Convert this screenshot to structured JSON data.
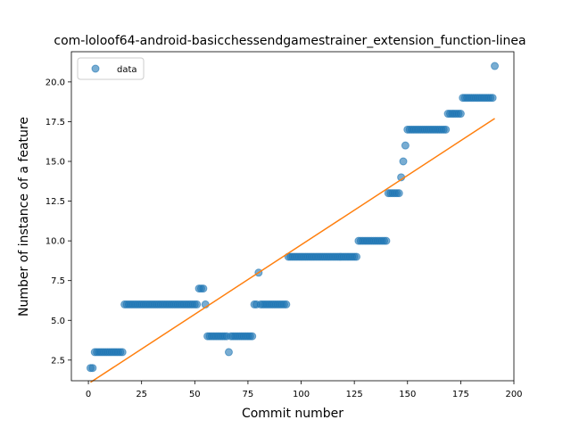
{
  "chart_data": {
    "type": "scatter",
    "title": "com-loloof64-android-basicchessendgamestrainer_extension_function-linea",
    "xlabel": "Commit number",
    "ylabel": "Number of instance of a feature",
    "xlim": [
      -8,
      200
    ],
    "ylim": [
      1.2,
      21.9
    ],
    "xticks": [
      "0",
      "25",
      "50",
      "75",
      "100",
      "125",
      "150",
      "175",
      "200"
    ],
    "yticks": [
      "2.5",
      "5.0",
      "7.5",
      "10.0",
      "12.5",
      "15.0",
      "17.5",
      "20.0"
    ],
    "grid": false,
    "legend": {
      "placement": "upper-left",
      "entries": [
        "data"
      ]
    },
    "series": [
      {
        "name": "data",
        "kind": "points",
        "color": "#1f77b4",
        "x": [
          1,
          2,
          3,
          4,
          5,
          6,
          7,
          8,
          9,
          10,
          11,
          12,
          13,
          14,
          15,
          16,
          17,
          18,
          19,
          20,
          21,
          22,
          23,
          24,
          25,
          26,
          27,
          28,
          29,
          30,
          31,
          32,
          33,
          34,
          35,
          36,
          37,
          38,
          39,
          40,
          41,
          42,
          43,
          44,
          45,
          46,
          47,
          48,
          49,
          50,
          51,
          52,
          53,
          54,
          55,
          56,
          57,
          58,
          59,
          60,
          61,
          62,
          63,
          64,
          65,
          66,
          67,
          68,
          69,
          70,
          71,
          72,
          73,
          74,
          75,
          76,
          77,
          78,
          79,
          80,
          81,
          82,
          83,
          84,
          85,
          86,
          87,
          88,
          89,
          90,
          91,
          92,
          93,
          94,
          95,
          96,
          97,
          98,
          99,
          100,
          101,
          102,
          103,
          104,
          105,
          106,
          107,
          108,
          109,
          110,
          111,
          112,
          113,
          114,
          115,
          116,
          117,
          118,
          119,
          120,
          121,
          122,
          123,
          124,
          125,
          126,
          127,
          128,
          129,
          130,
          131,
          132,
          133,
          134,
          135,
          136,
          137,
          138,
          139,
          140,
          141,
          142,
          143,
          144,
          145,
          146,
          147,
          148,
          149,
          150,
          151,
          152,
          153,
          154,
          155,
          156,
          157,
          158,
          159,
          160,
          161,
          162,
          163,
          164,
          165,
          166,
          167,
          168,
          169,
          170,
          171,
          172,
          173,
          174,
          175,
          176,
          177,
          178,
          179,
          180,
          181,
          182,
          183,
          184,
          185,
          186,
          187,
          188,
          189,
          190,
          191
        ],
        "y": [
          2,
          2,
          3,
          3,
          3,
          3,
          3,
          3,
          3,
          3,
          3,
          3,
          3,
          3,
          3,
          3,
          6,
          6,
          6,
          6,
          6,
          6,
          6,
          6,
          6,
          6,
          6,
          6,
          6,
          6,
          6,
          6,
          6,
          6,
          6,
          6,
          6,
          6,
          6,
          6,
          6,
          6,
          6,
          6,
          6,
          6,
          6,
          6,
          6,
          6,
          6,
          7,
          7,
          7,
          6,
          4,
          4,
          4,
          4,
          4,
          4,
          4,
          4,
          4,
          4,
          3,
          4,
          4,
          4,
          4,
          4,
          4,
          4,
          4,
          4,
          4,
          4,
          6,
          6,
          8,
          6,
          6,
          6,
          6,
          6,
          6,
          6,
          6,
          6,
          6,
          6,
          6,
          6,
          9,
          9,
          9,
          9,
          9,
          9,
          9,
          9,
          9,
          9,
          9,
          9,
          9,
          9,
          9,
          9,
          9,
          9,
          9,
          9,
          9,
          9,
          9,
          9,
          9,
          9,
          9,
          9,
          9,
          9,
          9,
          9,
          9,
          10,
          10,
          10,
          10,
          10,
          10,
          10,
          10,
          10,
          10,
          10,
          10,
          10,
          10,
          13,
          13,
          13,
          13,
          13,
          13,
          14,
          15,
          16,
          17,
          17,
          17,
          17,
          17,
          17,
          17,
          17,
          17,
          17,
          17,
          17,
          17,
          17,
          17,
          17,
          17,
          17,
          17,
          18,
          18,
          18,
          18,
          18,
          18,
          18,
          19,
          19,
          19,
          19,
          19,
          19,
          19,
          19,
          19,
          19,
          19,
          19,
          19,
          19,
          19,
          21
        ]
      },
      {
        "name": "",
        "kind": "line",
        "color": "#ff7f0e",
        "x": [
          1,
          191
        ],
        "y": [
          1.1,
          17.7
        ]
      }
    ]
  }
}
